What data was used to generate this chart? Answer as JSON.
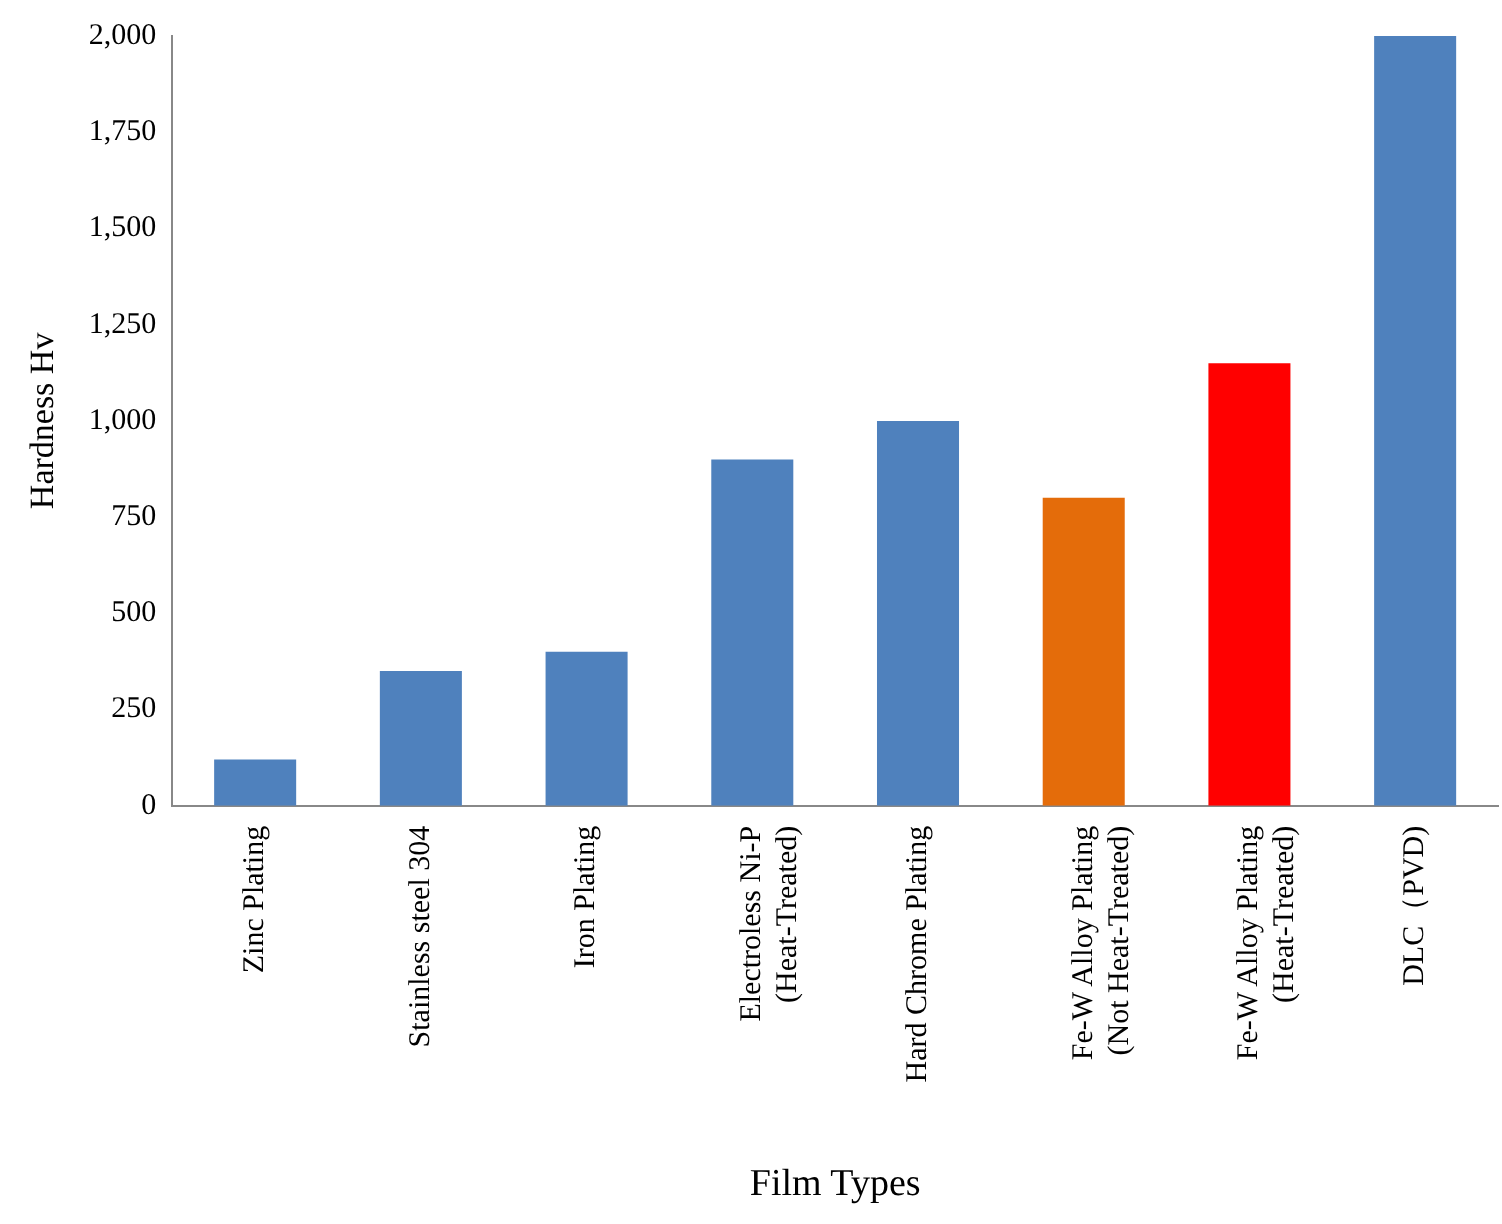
{
  "chart_data": {
    "type": "bar",
    "xlabel": "Film Types",
    "ylabel": "Hardness Hv",
    "categories": [
      "Zinc Plating",
      "Stainless steel 304",
      "Iron Plating",
      "Electroless Ni-P\n(Heat-Treated)",
      "Hard Chrome Plating",
      "Fe-W Alloy Plating\n(Not Heat-Treated)",
      "Fe-W Alloy Plating\n(Heat-Treated)",
      "DLC（PVD)"
    ],
    "values": [
      120,
      350,
      400,
      900,
      1000,
      800,
      1150,
      2000
    ],
    "colors": [
      "#4f81bd",
      "#4f81bd",
      "#4f81bd",
      "#4f81bd",
      "#4f81bd",
      "#e46c0a",
      "#ff0000",
      "#4f81bd"
    ],
    "ylim": [
      0,
      2000
    ],
    "yticks": [
      0,
      250,
      500,
      750,
      {
        "value": 1000,
        "label": "1,000"
      },
      {
        "value": 1250,
        "label": "1,250"
      },
      {
        "value": 1500,
        "label": "1,500"
      },
      {
        "value": 1750,
        "label": "1,750"
      },
      {
        "value": 2000,
        "label": "2,000"
      }
    ],
    "grid": false
  }
}
